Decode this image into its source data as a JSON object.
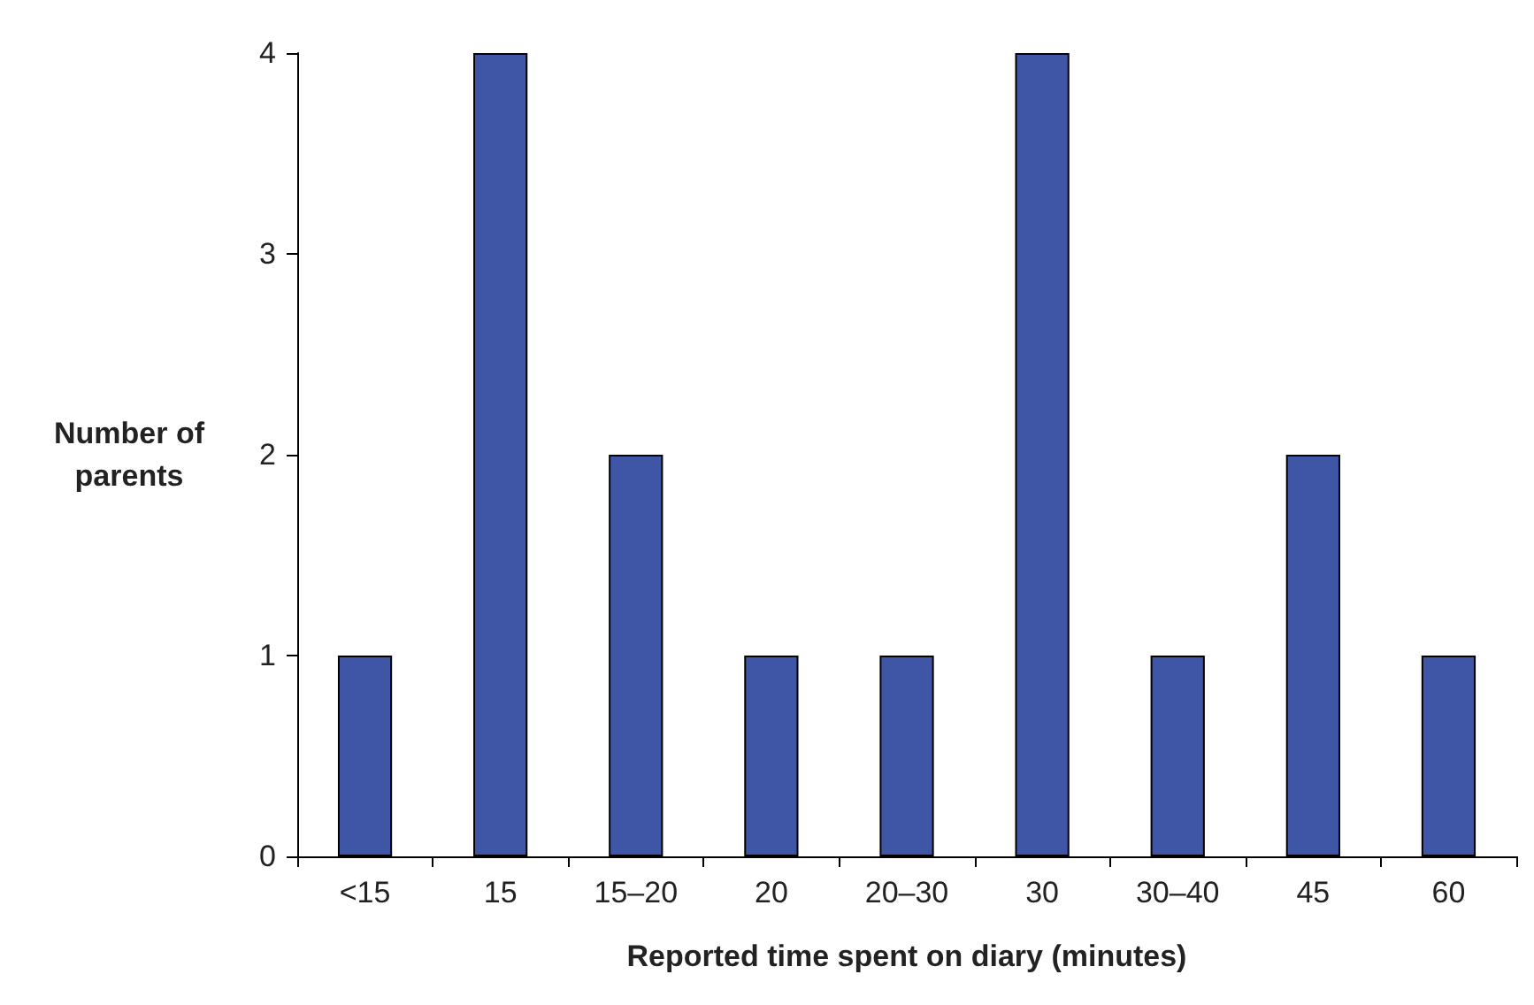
{
  "chart_data": {
    "type": "bar",
    "xlabel": "Reported time spent on diary (minutes)",
    "ylabel": "Number of\nparents",
    "categories": [
      "<15",
      "15",
      "15–20",
      "20",
      "20–30",
      "30",
      "30–40",
      "45",
      "60"
    ],
    "values": [
      1,
      4,
      2,
      1,
      1,
      4,
      1,
      2,
      1
    ],
    "color": "#3f56a6",
    "ylim": [
      0,
      4
    ],
    "yticks": [
      0,
      1,
      2,
      3,
      4
    ],
    "grid": false
  }
}
